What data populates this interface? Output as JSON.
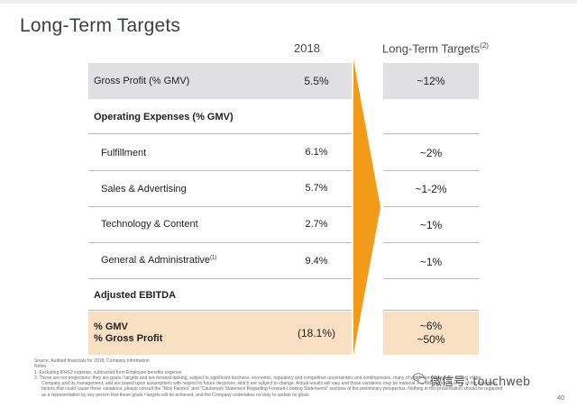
{
  "title": "Long-Term Targets",
  "columns": {
    "year": "2018",
    "long_term": "Long-Term Targets",
    "long_term_note": "(2)"
  },
  "rows": {
    "gross_profit": {
      "label": "Gross Profit (% GMV)",
      "value_2018": "5.5%",
      "target": "~12%"
    },
    "opex_header": {
      "label": "Operating Expenses (% GMV)"
    },
    "fulfillment": {
      "label": "Fulfillment",
      "value_2018": "6.1%",
      "target": "~2%"
    },
    "sales": {
      "label": "Sales & Advertising",
      "value_2018": "5.7%",
      "target": "~1-2%"
    },
    "tech": {
      "label": "Technology & Content",
      "value_2018": "2.7%",
      "target": "~1%"
    },
    "ga": {
      "label": "General & Administrative",
      "label_note": "(1)",
      "value_2018": "9.4%",
      "target": "~1%"
    },
    "ebitda_header": {
      "label": "Adjusted EBITDA"
    },
    "ebitda": {
      "label_line1": "% GMV",
      "label_line2": "% Gross Profit",
      "value_2018": "(18.1%)",
      "target_line1": "~6%",
      "target_line2": "~50%"
    }
  },
  "colors": {
    "highlight_grey": "#e0e0e2",
    "highlight_peach": "#f9e0c2",
    "arrow": "#f29a1a"
  },
  "footer": {
    "source": "Source: Audited financials for 2018, Company information",
    "notes_heading": "Notes",
    "note1": "1.   Excluding IFRS2 expense, subtracted from Employee benefits expense",
    "note2_line1": "2.   These are not projections; they are goals / targets and are forward-looking, subject to significant business, economic, regulatory and competitive uncertainties and contingencies, many of which are beyond the control of the",
    "note2_line2": "Company and its management, and are based upon assumptions with respect to future decisions, which are subject to change. Actual results will vary and those variations may be material. For discussion of some of the important",
    "note2_line3": "factors that could cause these variations, please consult the \"Risk Factors\" and \"Cautionary Statement Regarding Forward-Looking Statements\" sections of the preliminary prospectus. Nothing in this presentation should be regarded",
    "note2_line4": "as a representation by any person that these goals / targets will be achieved, and the Company undertakes no duty to update its goals."
  },
  "page_number": "40",
  "watermark": "微信号: touchweb",
  "icons": [
    "wechat-icon"
  ]
}
